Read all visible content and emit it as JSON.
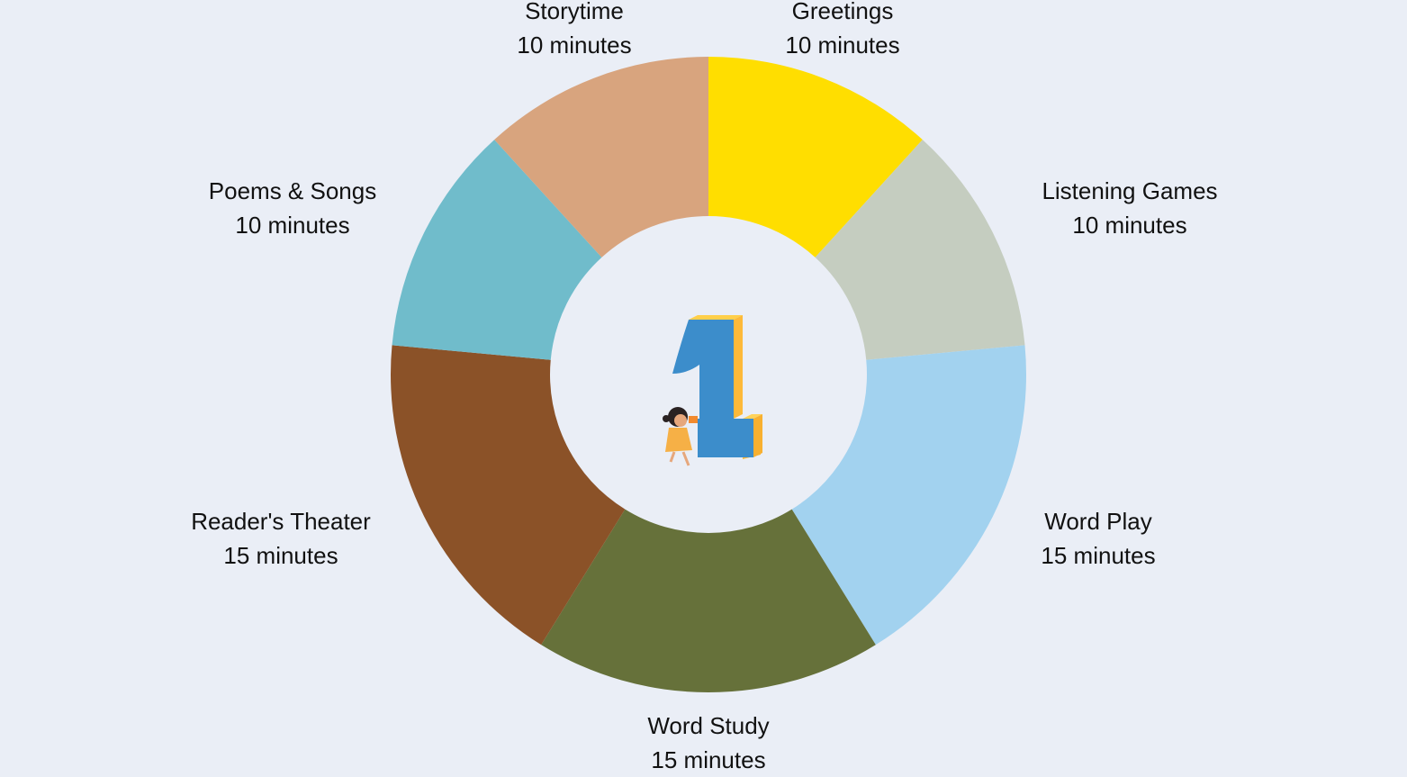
{
  "chart_data": {
    "type": "pie",
    "donut": true,
    "unit_suffix": "minutes",
    "start": "top",
    "direction": "clockwise",
    "slices": [
      {
        "label": "Greetings",
        "value": 10,
        "value_label": "10 minutes",
        "color": "#FFDE00"
      },
      {
        "label": "Listening Games",
        "value": 10,
        "value_label": "10 minutes",
        "color": "#C5CDC0"
      },
      {
        "label": "Word Play",
        "value": 15,
        "value_label": "15 minutes",
        "color": "#A2D2EF"
      },
      {
        "label": "Word Study",
        "value": 15,
        "value_label": "15 minutes",
        "color": "#66713A"
      },
      {
        "label": "Reader's Theater",
        "value": 15,
        "value_label": "15 minutes",
        "color": "#8B5228"
      },
      {
        "label": "Poems & Songs",
        "value": 10,
        "value_label": "10 minutes",
        "color": "#70BCCB"
      },
      {
        "label": "Storytime",
        "value": 10,
        "value_label": "10 minutes",
        "color": "#D8A47E"
      }
    ],
    "legend": "none",
    "center_image": "number-one-with-girl-illustration"
  },
  "background_color": "#EAEEF6"
}
